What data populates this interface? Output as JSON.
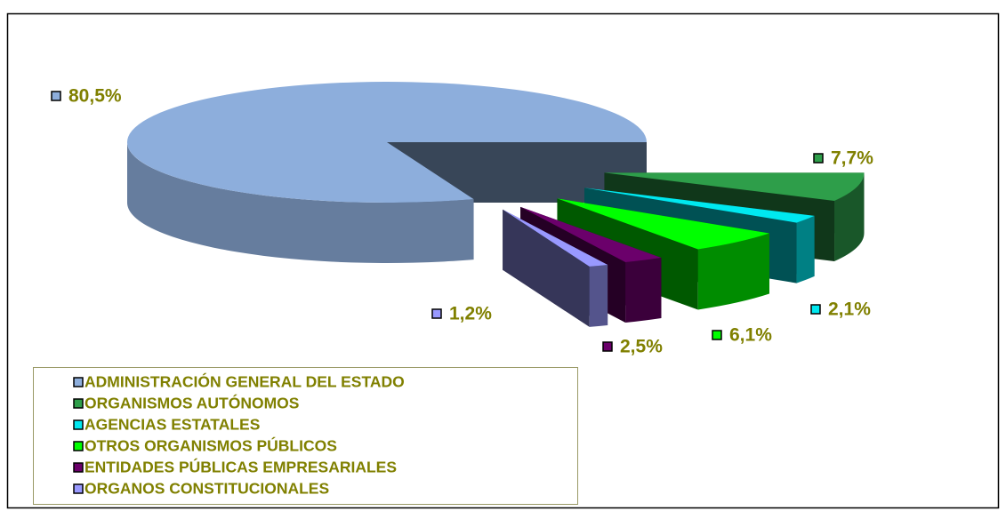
{
  "chart_data": {
    "type": "pie",
    "categories": [
      "ADMINISTRACIÓN GENERAL DEL ESTADO",
      "ORGANISMOS AUTÓNOMOS",
      "AGENCIAS ESTATALES",
      "OTROS ORGANISMOS PÚBLICOS",
      "ENTIDADES PÚBLICAS EMPRESARIALES",
      "ORGANOS CONSTITUCIONALES"
    ],
    "values": [
      80.5,
      7.7,
      2.1,
      6.1,
      2.5,
      1.2
    ],
    "value_labels": [
      "80,5%",
      "7,7%",
      "2,1%",
      "6,1%",
      "2,5%",
      "1,2%"
    ],
    "colors": [
      "#8DAEDC",
      "#2E9E4A",
      "#00E8F0",
      "#00FF00",
      "#6B006B",
      "#9999FF"
    ],
    "legend": "bottom-left"
  }
}
